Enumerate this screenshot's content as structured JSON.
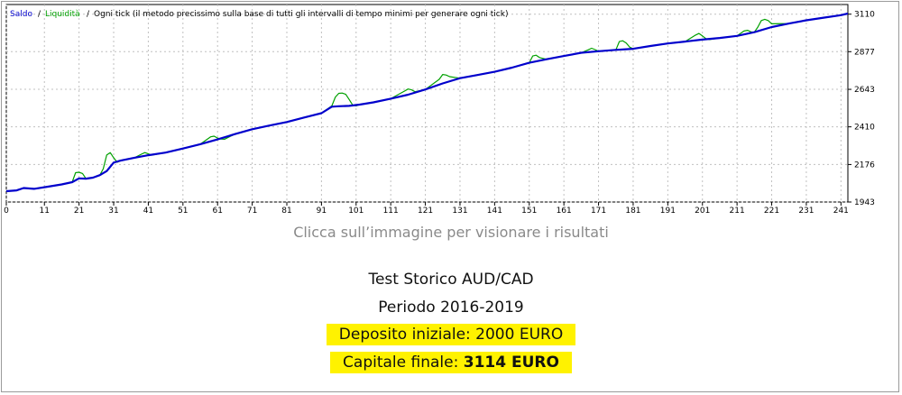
{
  "chart_data": {
    "type": "line",
    "legend": [
      "Saldo",
      "Liquidità"
    ],
    "legend_separator": "/",
    "mode_text": "Ogni tick (il metodo precissimo sulla base di tutti gli intervalli di tempo minimi per generare ogni tick)",
    "legend_colors": {
      "Saldo": "#0000cc",
      "Liquidità": "#00a000"
    },
    "x_ticks": [
      0,
      11,
      21,
      31,
      41,
      51,
      61,
      71,
      81,
      91,
      101,
      111,
      121,
      131,
      141,
      151,
      161,
      171,
      181,
      191,
      201,
      211,
      221,
      231,
      241
    ],
    "y_ticks": [
      1943,
      2176,
      2410,
      2643,
      2877,
      3110
    ],
    "xlim": [
      0,
      243
    ],
    "ylim": [
      1943,
      3170
    ],
    "grid": true,
    "series": [
      {
        "name": "Saldo",
        "color": "#0000cc",
        "x": [
          0,
          3,
          5,
          8,
          12,
          16,
          19,
          21,
          23,
          25,
          27,
          29,
          31,
          33,
          37,
          41,
          46,
          51,
          56,
          61,
          66,
          71,
          76,
          81,
          86,
          91,
          94,
          96,
          99,
          102,
          106,
          111,
          116,
          121,
          126,
          131,
          136,
          141,
          146,
          151,
          156,
          161,
          166,
          171,
          176,
          181,
          186,
          191,
          196,
          201,
          206,
          211,
          216,
          221,
          226,
          231,
          236,
          241,
          243
        ],
        "y": [
          2010,
          2015,
          2030,
          2025,
          2038,
          2052,
          2066,
          2090,
          2088,
          2094,
          2110,
          2135,
          2188,
          2200,
          2218,
          2234,
          2250,
          2275,
          2302,
          2332,
          2365,
          2395,
          2418,
          2440,
          2468,
          2495,
          2535,
          2538,
          2540,
          2548,
          2562,
          2585,
          2610,
          2642,
          2680,
          2712,
          2732,
          2752,
          2778,
          2808,
          2830,
          2850,
          2870,
          2880,
          2888,
          2895,
          2912,
          2928,
          2940,
          2952,
          2962,
          2975,
          2998,
          3030,
          3052,
          3072,
          3088,
          3104,
          3114
        ]
      },
      {
        "name": "Liquidità",
        "color": "#00a000",
        "x": [
          0,
          3,
          5,
          8,
          12,
          16,
          19,
          20,
          21,
          22,
          23,
          25,
          27,
          28,
          29,
          30,
          31,
          32,
          33,
          37,
          39,
          40,
          41,
          42,
          43,
          46,
          51,
          56,
          59,
          60,
          61,
          62,
          63,
          66,
          71,
          76,
          81,
          86,
          91,
          94,
          95,
          96,
          97,
          98,
          99,
          100,
          101,
          102,
          106,
          111,
          115,
          116,
          117,
          118,
          121,
          125,
          126,
          127,
          128,
          131,
          136,
          141,
          146,
          151,
          152,
          153,
          154,
          156,
          161,
          166,
          168,
          169,
          170,
          171,
          176,
          177,
          178,
          179,
          180,
          181,
          186,
          191,
          196,
          199,
          200,
          201,
          202,
          203,
          206,
          211,
          213,
          214,
          215,
          216,
          217,
          218,
          219,
          220,
          221,
          226,
          231,
          236,
          241,
          243
        ],
        "y": [
          2010,
          2015,
          2030,
          2025,
          2038,
          2052,
          2066,
          2125,
          2128,
          2120,
          2088,
          2094,
          2110,
          2150,
          2235,
          2250,
          2218,
          2190,
          2200,
          2218,
          2240,
          2250,
          2242,
          2234,
          2238,
          2250,
          2275,
          2302,
          2348,
          2352,
          2340,
          2334,
          2333,
          2365,
          2395,
          2418,
          2440,
          2468,
          2495,
          2540,
          2595,
          2618,
          2620,
          2612,
          2580,
          2545,
          2540,
          2548,
          2562,
          2585,
          2632,
          2645,
          2640,
          2628,
          2642,
          2705,
          2735,
          2732,
          2722,
          2712,
          2732,
          2752,
          2778,
          2808,
          2850,
          2855,
          2840,
          2830,
          2850,
          2870,
          2888,
          2898,
          2890,
          2880,
          2888,
          2940,
          2945,
          2930,
          2905,
          2895,
          2912,
          2928,
          2940,
          2980,
          2990,
          2975,
          2958,
          2952,
          2962,
          2975,
          3005,
          3010,
          3000,
          2998,
          3030,
          3070,
          3078,
          3070,
          3050,
          3052,
          3072,
          3088,
          3104,
          3114
        ]
      }
    ]
  },
  "caption": "Clicca sull’immagine per visionare i risultati",
  "info": {
    "title": "Test Storico AUD/CAD",
    "period": "Periodo 2016-2019",
    "deposit": "Deposito iniziale: 2000 EURO",
    "final_label": "Capitale finale: ",
    "final_value": "3114 EURO",
    "highlight_color": "#fff200"
  }
}
